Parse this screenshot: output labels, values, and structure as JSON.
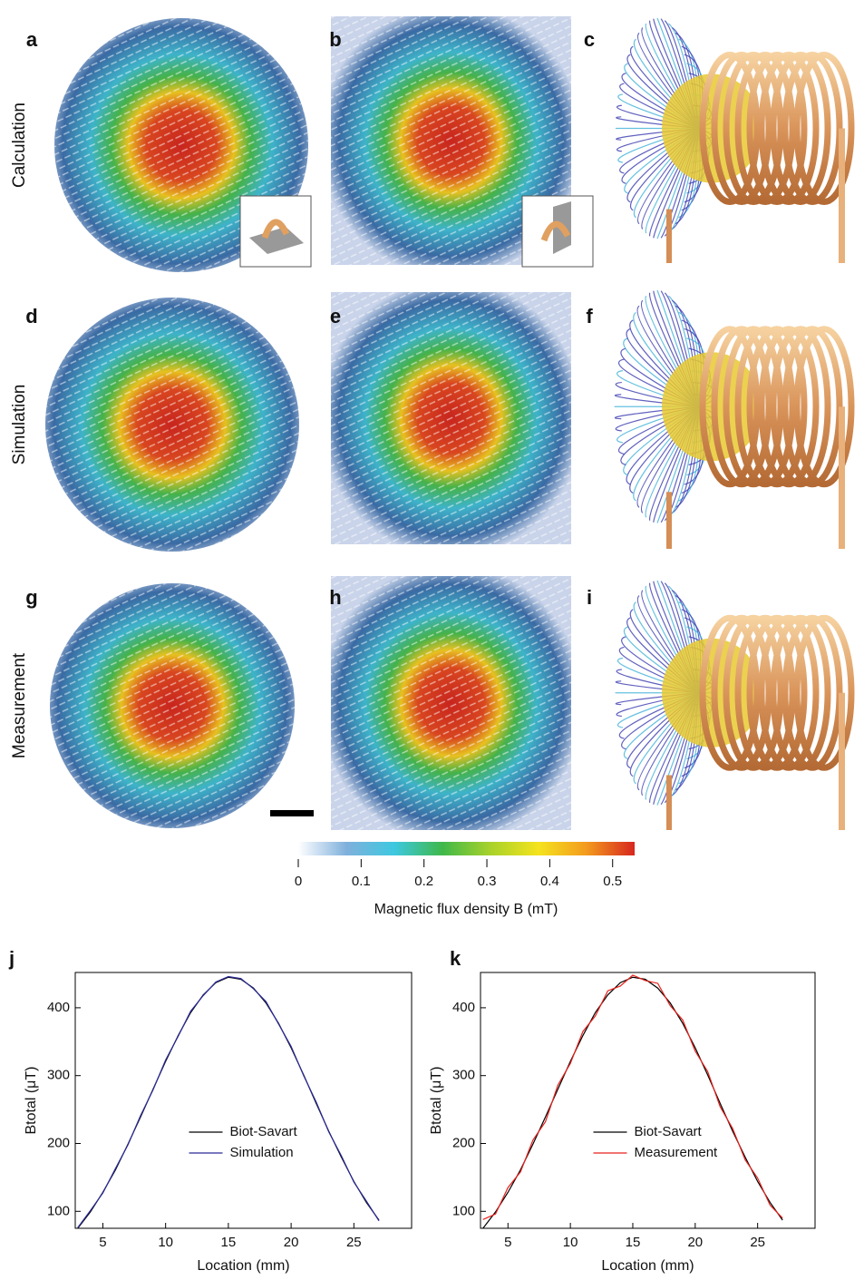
{
  "panel_labels": [
    "a",
    "b",
    "c",
    "d",
    "e",
    "f",
    "g",
    "h",
    "i"
  ],
  "row_labels": [
    "Calculation",
    "Simulation",
    "Measurement"
  ],
  "colorbar": {
    "label": "Magnetic flux density B (mT)",
    "lim": [
      0,
      0.535
    ],
    "ticks": [
      0,
      0.1,
      0.2,
      0.3,
      0.4,
      0.5
    ],
    "colors": [
      "#ffffff",
      "#7fb0dc",
      "#3ec8e0",
      "#3fb84a",
      "#a8d22a",
      "#f5e31e",
      "#f39a1e",
      "#d7261e"
    ]
  },
  "chart_data": [
    {
      "type": "line",
      "label": "j",
      "xlabel": "Location (mm)",
      "ylabel": "Btotal (μT)",
      "x": [
        3,
        4,
        5,
        6,
        7,
        8,
        9,
        10,
        11,
        12,
        13,
        14,
        15,
        16,
        17,
        18,
        19,
        20,
        21,
        22,
        23,
        24,
        25,
        26,
        27
      ],
      "series": [
        {
          "name": "Biot-Savart",
          "color": "#000000",
          "values": [
            75,
            99,
            128,
            161,
            199,
            239,
            280,
            321,
            359,
            393,
            419,
            437,
            445,
            442,
            429,
            407,
            377,
            341,
            301,
            259,
            218,
            180,
            144,
            113,
            87
          ]
        },
        {
          "name": "Simulation",
          "color": "#2b2b9a",
          "values": [
            76,
            101,
            127,
            163,
            198,
            241,
            279,
            323,
            358,
            395,
            418,
            438,
            446,
            443,
            428,
            409,
            376,
            343,
            300,
            261,
            217,
            182,
            143,
            115,
            86
          ]
        }
      ],
      "xlim": [
        2.8,
        29.6
      ],
      "ylim": [
        75,
        452
      ],
      "xticks": [
        5,
        10,
        15,
        20,
        25
      ],
      "yticks": [
        100,
        200,
        300,
        400
      ],
      "legend": "center"
    },
    {
      "type": "line",
      "label": "k",
      "xlabel": "Location (mm)",
      "ylabel": "Btotal (μT)",
      "x": [
        3,
        4,
        5,
        6,
        7,
        8,
        9,
        10,
        11,
        12,
        13,
        14,
        15,
        16,
        17,
        18,
        19,
        20,
        21,
        22,
        23,
        24,
        25,
        26,
        27
      ],
      "series": [
        {
          "name": "Biot-Savart",
          "color": "#000000",
          "values": [
            75,
            99,
            128,
            161,
            199,
            239,
            280,
            321,
            359,
            393,
            419,
            437,
            445,
            442,
            429,
            407,
            377,
            341,
            301,
            259,
            218,
            180,
            144,
            113,
            87
          ]
        },
        {
          "name": "Measurement",
          "color": "#e8201a",
          "values": [
            88,
            96,
            135,
            158,
            205,
            232,
            286,
            318,
            365,
            388,
            425,
            432,
            448,
            440,
            436,
            403,
            382,
            336,
            306,
            254,
            222,
            176,
            149,
            109,
            90
          ]
        }
      ],
      "xlim": [
        2.8,
        29.6
      ],
      "ylim": [
        75,
        452
      ],
      "xticks": [
        5,
        10,
        15,
        20,
        25
      ],
      "yticks": [
        100,
        200,
        300,
        400
      ],
      "legend": "center"
    }
  ]
}
